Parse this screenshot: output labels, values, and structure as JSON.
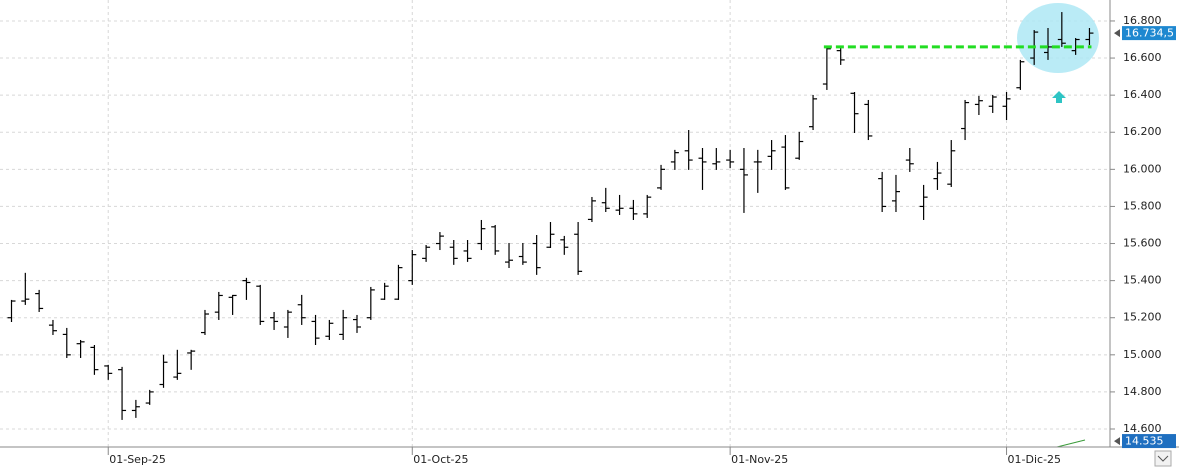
{
  "chart_data": {
    "type": "ohlc",
    "color": "#000000",
    "grid": true,
    "categories": [
      null,
      null,
      null,
      null,
      null,
      null,
      null,
      "01-Sep-25",
      null,
      null,
      null,
      null,
      null,
      null,
      null,
      null,
      null,
      null,
      null,
      null,
      null,
      null,
      null,
      null,
      null,
      null,
      null,
      null,
      null,
      "01-Oct-25",
      null,
      null,
      null,
      null,
      null,
      null,
      null,
      null,
      null,
      null,
      null,
      null,
      null,
      null,
      null,
      null,
      null,
      null,
      null,
      null,
      null,
      null,
      "01-Nov-25",
      null,
      null,
      null,
      null,
      null,
      null,
      null,
      null,
      null,
      null,
      null,
      null,
      null,
      null,
      null,
      null,
      null,
      null,
      null,
      "01-Dic-25",
      null,
      null,
      null,
      null,
      null,
      null
    ],
    "open": [
      15200,
      15290,
      15330,
      15160,
      15110,
      15060,
      15040,
      14940,
      14920,
      14700,
      14740,
      14840,
      14880,
      15010,
      15120,
      15230,
      15310,
      15400,
      15370,
      15200,
      15150,
      15270,
      15180,
      15100,
      15110,
      15190,
      15200,
      15300,
      15300,
      15400,
      15520,
      15600,
      15580,
      15560,
      15600,
      15690,
      15500,
      15530,
      15600,
      15580,
      15620,
      15650,
      15730,
      15820,
      15780,
      15790,
      15760,
      15900,
      16040,
      16100,
      16060,
      16030,
      16050,
      16000,
      16040,
      16070,
      16120,
      16060,
      16230,
      16460,
      16640,
      16410,
      16350,
      15950,
      15830,
      16050,
      15800,
      15950,
      15920,
      16220,
      16350,
      16340,
      16340,
      16440,
      16600,
      16630,
      16700,
      16640,
      16700
    ],
    "high": [
      15296,
      15442,
      15350,
      15188,
      15145,
      15080,
      15053,
      14946,
      14935,
      14757,
      14811,
      15000,
      15027,
      15027,
      15242,
      15339,
      15323,
      15415,
      15377,
      15231,
      15242,
      15323,
      15215,
      15188,
      15242,
      15215,
      15366,
      15388,
      15485,
      15565,
      15592,
      15662,
      15619,
      15619,
      15727,
      15700,
      15603,
      15603,
      15646,
      15716,
      15641,
      15716,
      15851,
      15900,
      15862,
      15835,
      15862,
      16024,
      16105,
      16212,
      16115,
      16115,
      16105,
      16115,
      16105,
      16158,
      16185,
      16202,
      16401,
      16654,
      16654,
      16417,
      16374,
      15986,
      15970,
      16115,
      15916,
      16040,
      16158,
      16374,
      16396,
      16401,
      16417,
      16590,
      16751,
      16762,
      16848,
      16708,
      16762
    ],
    "low": [
      15177,
      15269,
      15231,
      15107,
      14983,
      14983,
      14892,
      14865,
      14649,
      14660,
      14730,
      14822,
      14865,
      14919,
      15107,
      15188,
      15215,
      15296,
      15161,
      15134,
      15091,
      15161,
      15053,
      15080,
      15080,
      15118,
      15188,
      15296,
      15296,
      15377,
      15501,
      15565,
      15485,
      15501,
      15565,
      15539,
      15468,
      15485,
      15431,
      15576,
      15539,
      15431,
      15716,
      15770,
      15754,
      15727,
      15738,
      15889,
      15997,
      15997,
      15889,
      15997,
      16007,
      15765,
      15873,
      15997,
      15889,
      16051,
      16212,
      16428,
      16563,
      16196,
      16158,
      15770,
      15770,
      15986,
      15727,
      15889,
      15905,
      16158,
      16293,
      16304,
      16266,
      16428,
      16563,
      16590,
      16660,
      16617,
      16670
    ],
    "close": [
      15290,
      15300,
      15250,
      15130,
      15000,
      15070,
      14920,
      14900,
      14700,
      14720,
      14800,
      14960,
      14900,
      15020,
      15220,
      15320,
      15320,
      15390,
      15180,
      15180,
      15230,
      15200,
      15090,
      15170,
      15200,
      15150,
      15350,
      15370,
      15470,
      15540,
      15580,
      15640,
      15520,
      15520,
      15680,
      15560,
      15510,
      15500,
      15470,
      15650,
      15580,
      15450,
      15830,
      15790,
      15790,
      15760,
      15850,
      16000,
      16090,
      16050,
      16040,
      16040,
      16040,
      15970,
      16040,
      16100,
      15900,
      16150,
      16380,
      16650,
      16590,
      16300,
      16180,
      15800,
      15880,
      16030,
      15850,
      15980,
      16100,
      16360,
      16370,
      16390,
      16380,
      16580,
      16740,
      16660,
      16680,
      16700,
      16734.5
    ],
    "ylim": [
      14503,
      16913
    ],
    "yticks": [
      {
        "value": 14600,
        "label": "14.600"
      },
      {
        "value": 14800,
        "label": "14.800"
      },
      {
        "value": 15000,
        "label": "15.000"
      },
      {
        "value": 15200,
        "label": "15.200"
      },
      {
        "value": 15400,
        "label": "15.400"
      },
      {
        "value": 15600,
        "label": "15.600"
      },
      {
        "value": 15800,
        "label": "15.800"
      },
      {
        "value": 16000,
        "label": "16.000"
      },
      {
        "value": 16200,
        "label": "16.200"
      },
      {
        "value": 16400,
        "label": "16.400"
      },
      {
        "value": 16600,
        "label": "16.600"
      },
      {
        "value": 16800,
        "label": "16.800"
      }
    ],
    "last_price": {
      "value": 16734.5,
      "label": "16.734,5",
      "color": "#1e88d0"
    },
    "lower_marker": {
      "value": 14535,
      "label": "14.535",
      "color": "#1e6fc0"
    },
    "resistance_line": {
      "value": 16660,
      "color": "#22dd22"
    }
  }
}
